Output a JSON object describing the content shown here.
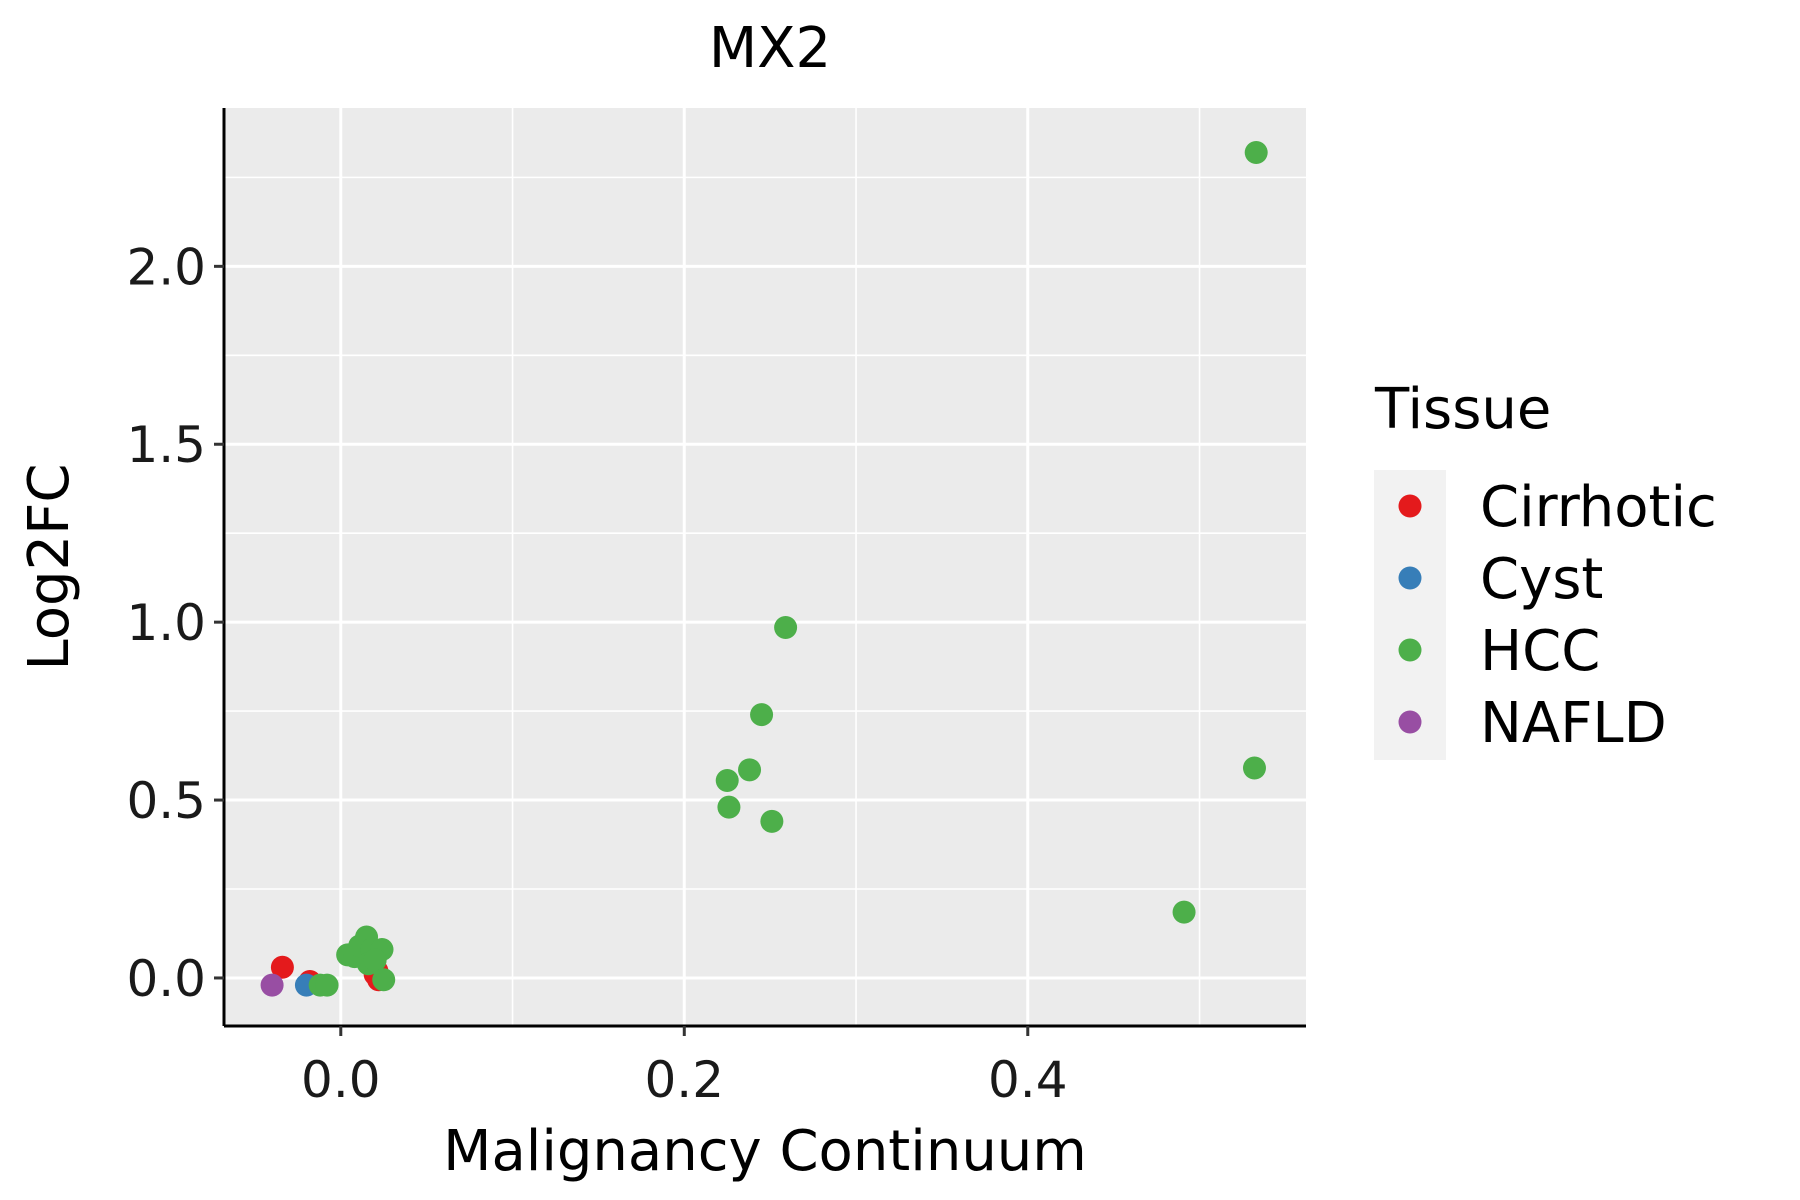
{
  "chart_data": {
    "type": "scatter",
    "title": "MX2",
    "xlabel": "Malignancy Continuum",
    "ylabel": "Log2FC",
    "xlim": [
      -0.068,
      0.562
    ],
    "ylim": [
      -0.135,
      2.445
    ],
    "x_ticks": [
      0.0,
      0.2,
      0.4
    ],
    "x_tick_labels": [
      "0.0",
      "0.2",
      "0.4"
    ],
    "x_minor_ticks": [
      -0.1,
      0.1,
      0.3,
      0.5
    ],
    "y_ticks": [
      0.0,
      0.5,
      1.0,
      1.5,
      2.0
    ],
    "y_tick_labels": [
      "0.0",
      "0.5",
      "1.0",
      "1.5",
      "2.0"
    ],
    "y_minor_ticks": [
      0.25,
      0.75,
      1.25,
      1.75,
      2.25
    ],
    "grid": true,
    "legend_title": "Tissue",
    "legend_position": "right",
    "series": [
      {
        "name": "Cirrhotic",
        "color": "#E41A1C",
        "points": [
          [
            -0.034,
            0.03
          ],
          [
            -0.018,
            -0.01
          ],
          [
            0.021,
            0.02
          ],
          [
            0.022,
            -0.005
          ],
          [
            0.02,
            0.01
          ]
        ]
      },
      {
        "name": "Cyst",
        "color": "#377EB8",
        "points": [
          [
            -0.02,
            -0.02
          ]
        ]
      },
      {
        "name": "HCC",
        "color": "#4DAF4A",
        "points": [
          [
            0.533,
            2.32
          ],
          [
            0.259,
            0.985
          ],
          [
            0.245,
            0.74
          ],
          [
            0.238,
            0.585
          ],
          [
            0.225,
            0.555
          ],
          [
            0.226,
            0.48
          ],
          [
            0.251,
            0.44
          ],
          [
            0.532,
            0.59
          ],
          [
            0.491,
            0.185
          ],
          [
            0.004,
            0.065
          ],
          [
            0.008,
            0.06
          ],
          [
            0.011,
            0.09
          ],
          [
            0.015,
            0.115
          ],
          [
            0.018,
            0.08
          ],
          [
            0.024,
            0.08
          ],
          [
            0.016,
            0.04
          ],
          [
            0.02,
            0.05
          ],
          [
            0.025,
            -0.005
          ],
          [
            -0.012,
            -0.02
          ],
          [
            -0.008,
            -0.02
          ]
        ]
      },
      {
        "name": "NAFLD",
        "color": "#984EA3",
        "points": [
          [
            -0.04,
            -0.02
          ]
        ]
      }
    ]
  }
}
